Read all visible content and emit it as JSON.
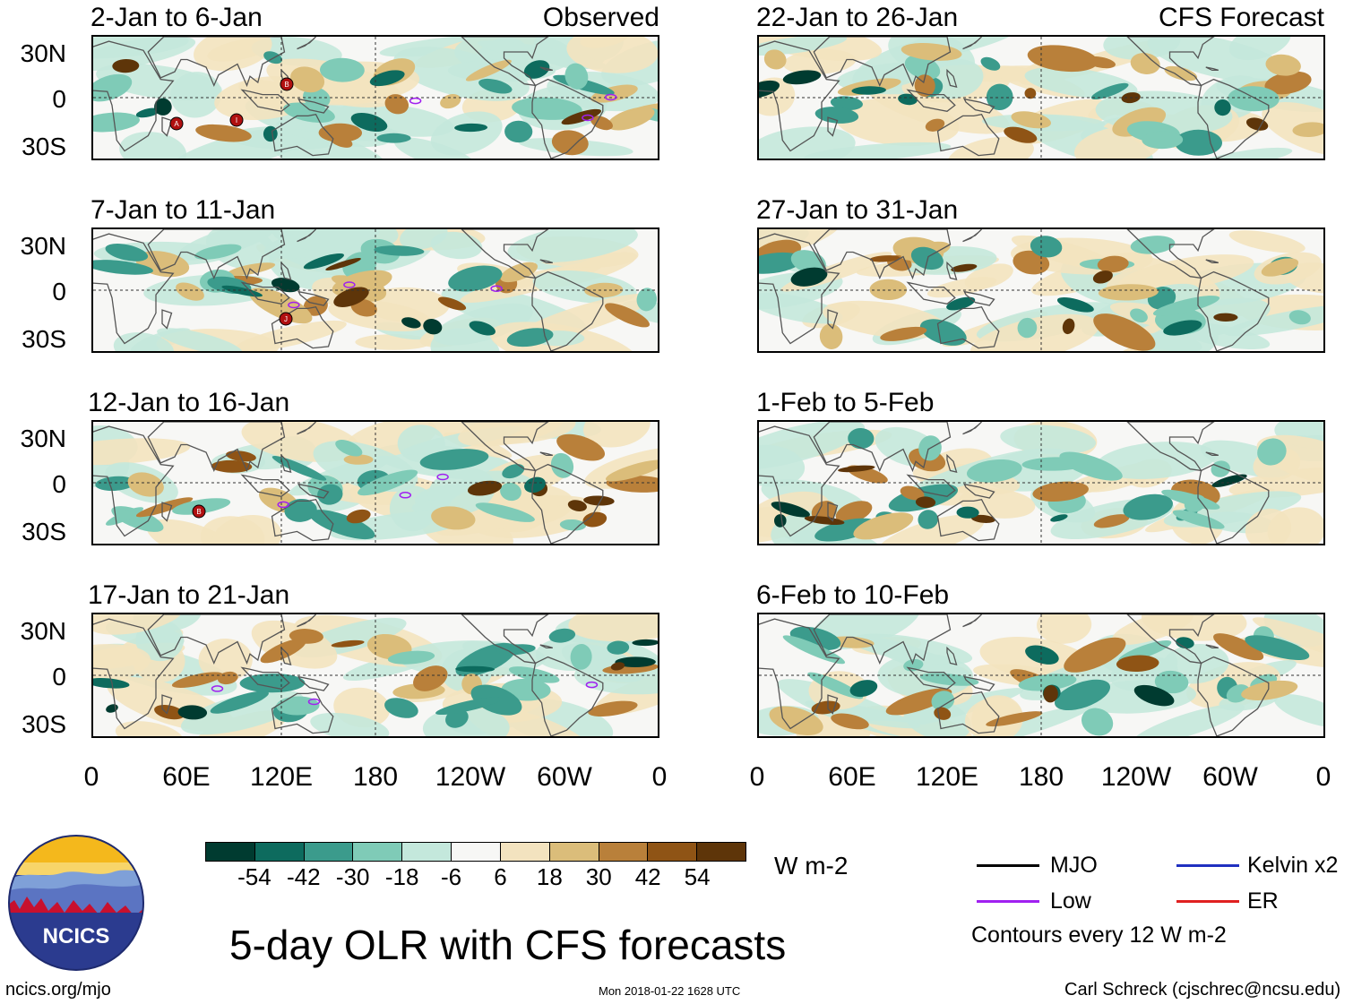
{
  "panels_left": [
    {
      "title": "2-Jan to 6-Jan",
      "tag": "Observed"
    },
    {
      "title": "7-Jan to 11-Jan",
      "tag": ""
    },
    {
      "title": "12-Jan to 16-Jan",
      "tag": ""
    },
    {
      "title": "17-Jan to 21-Jan",
      "tag": ""
    }
  ],
  "panels_right": [
    {
      "title": "22-Jan to 26-Jan",
      "tag": "CFS Forecast"
    },
    {
      "title": "27-Jan to 31-Jan",
      "tag": ""
    },
    {
      "title": "1-Feb to 5-Feb",
      "tag": ""
    },
    {
      "title": "6-Feb to 10-Feb",
      "tag": ""
    }
  ],
  "lat_labels": [
    "30N",
    "0",
    "30S"
  ],
  "lon_labels": [
    "0",
    "60E",
    "120E",
    "180",
    "120W",
    "60W",
    "0"
  ],
  "colorbar": {
    "labels": [
      "-54",
      "-42",
      "-30",
      "-18",
      "-6",
      "6",
      "18",
      "30",
      "42",
      "54"
    ],
    "colors": [
      "#003b30",
      "#0d6b5e",
      "#3b9b8c",
      "#7fcbb7",
      "#c4e8dc",
      "#f7f7f5",
      "#f3e3bf",
      "#dbbd7a",
      "#b9803a",
      "#8f5415",
      "#5e3509"
    ],
    "units": "W m-2"
  },
  "title": "5-day OLR with CFS forecasts",
  "logo": {
    "text": "NCICS"
  },
  "footer": {
    "url": "ncics.org/mjo",
    "timestamp": "Mon 2018-01-22 1628 UTC",
    "credit": "Carl Schreck (cjschrec@ncsu.edu)"
  },
  "legend": {
    "items": [
      {
        "label": "MJO",
        "color": "#000000"
      },
      {
        "label": "Kelvin x2",
        "color": "#2030c0"
      },
      {
        "label": "Low",
        "color": "#a020f0"
      },
      {
        "label": "ER",
        "color": "#e02020"
      }
    ],
    "note": "Contours every 12 W m-2"
  },
  "storm_markers": [
    {
      "panel": 0,
      "label": "A"
    },
    {
      "panel": 0,
      "label": "I"
    },
    {
      "panel": 0,
      "label": "B"
    },
    {
      "panel": 1,
      "label": "J"
    },
    {
      "panel": 2,
      "label": "B"
    }
  ]
}
